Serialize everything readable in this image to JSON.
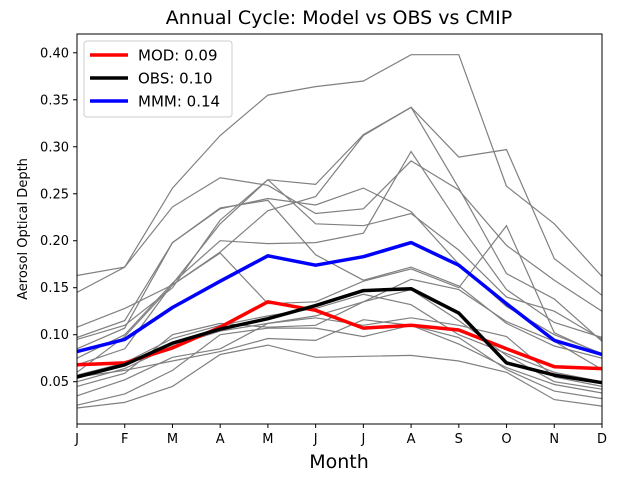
{
  "chart_data": {
    "type": "line",
    "title": "Annual Cycle: Model vs OBS vs CMIP",
    "xlabel": "Month",
    "ylabel": "Aerosol Optical Depth",
    "categories": [
      "J",
      "F",
      "M",
      "A",
      "M",
      "J",
      "J",
      "A",
      "S",
      "O",
      "N",
      "D"
    ],
    "ylim": [
      0.005,
      0.42
    ],
    "yticks": [
      "0.05",
      "0.10",
      "0.15",
      "0.20",
      "0.25",
      "0.30",
      "0.35",
      "0.40"
    ],
    "legend_position": "top-left",
    "grid": false,
    "cmip_color": "#808080",
    "cmip_series": [
      [
        0.163,
        0.172,
        0.256,
        0.312,
        0.355,
        0.364,
        0.37,
        0.398,
        0.398,
        0.258,
        0.218,
        0.162
      ],
      [
        0.145,
        0.172,
        0.236,
        0.267,
        0.259,
        0.229,
        0.234,
        0.285,
        0.254,
        0.195,
        0.158,
        0.125
      ],
      [
        0.085,
        0.107,
        0.198,
        0.235,
        0.243,
        0.185,
        0.158,
        0.172,
        0.152,
        0.112,
        0.088,
        0.075
      ],
      [
        0.095,
        0.11,
        0.15,
        0.222,
        0.265,
        0.26,
        0.313,
        0.342,
        0.289,
        0.297,
        0.181,
        0.142
      ],
      [
        0.068,
        0.085,
        0.154,
        0.218,
        0.265,
        0.218,
        0.216,
        0.229,
        0.19,
        0.14,
        0.125,
        0.095
      ],
      [
        0.097,
        0.115,
        0.198,
        0.234,
        0.245,
        0.238,
        0.256,
        0.231,
        0.175,
        0.13,
        0.1,
        0.08
      ],
      [
        0.108,
        0.128,
        0.153,
        0.188,
        0.232,
        0.247,
        0.312,
        0.342,
        0.256,
        0.165,
        0.138,
        0.093
      ],
      [
        0.075,
        0.1,
        0.155,
        0.2,
        0.197,
        0.198,
        0.208,
        0.295,
        0.218,
        0.148,
        0.113,
        0.097
      ],
      [
        0.06,
        0.098,
        0.153,
        0.187,
        0.133,
        0.135,
        0.157,
        0.17,
        0.15,
        0.216,
        0.102,
        0.079
      ],
      [
        0.045,
        0.059,
        0.1,
        0.112,
        0.108,
        0.11,
        0.135,
        0.159,
        0.148,
        0.114,
        0.093,
        0.063
      ],
      [
        0.035,
        0.052,
        0.076,
        0.085,
        0.112,
        0.118,
        0.11,
        0.118,
        0.11,
        0.098,
        0.055,
        0.045
      ],
      [
        0.057,
        0.07,
        0.096,
        0.11,
        0.12,
        0.128,
        0.143,
        0.132,
        0.1,
        0.08,
        0.06,
        0.05
      ],
      [
        0.05,
        0.064,
        0.088,
        0.104,
        0.112,
        0.12,
        0.135,
        0.148,
        0.115,
        0.078,
        0.05,
        0.042
      ],
      [
        0.025,
        0.037,
        0.062,
        0.1,
        0.107,
        0.107,
        0.098,
        0.11,
        0.097,
        0.063,
        0.04,
        0.032
      ],
      [
        0.055,
        0.062,
        0.072,
        0.082,
        0.096,
        0.094,
        0.116,
        0.11,
        0.09,
        0.065,
        0.047,
        0.038
      ],
      [
        0.022,
        0.028,
        0.045,
        0.079,
        0.089,
        0.076,
        0.077,
        0.078,
        0.072,
        0.06,
        0.031,
        0.024
      ]
    ],
    "series": [
      {
        "name": "MOD",
        "legend_label": "MOD: 0.09",
        "color": "#ff0000",
        "values": [
          0.068,
          0.07,
          0.086,
          0.108,
          0.135,
          0.126,
          0.107,
          0.11,
          0.105,
          0.085,
          0.066,
          0.064
        ]
      },
      {
        "name": "OBS",
        "legend_label": "OBS: 0.10",
        "color": "#000000",
        "values": [
          0.055,
          0.068,
          0.091,
          0.106,
          0.117,
          0.131,
          0.147,
          0.149,
          0.123,
          0.07,
          0.057,
          0.049
        ]
      },
      {
        "name": "MMM",
        "legend_label": "MMM: 0.14",
        "color": "#0000ff",
        "values": [
          0.082,
          0.095,
          0.129,
          0.157,
          0.184,
          0.174,
          0.183,
          0.198,
          0.174,
          0.133,
          0.094,
          0.079
        ]
      }
    ]
  }
}
